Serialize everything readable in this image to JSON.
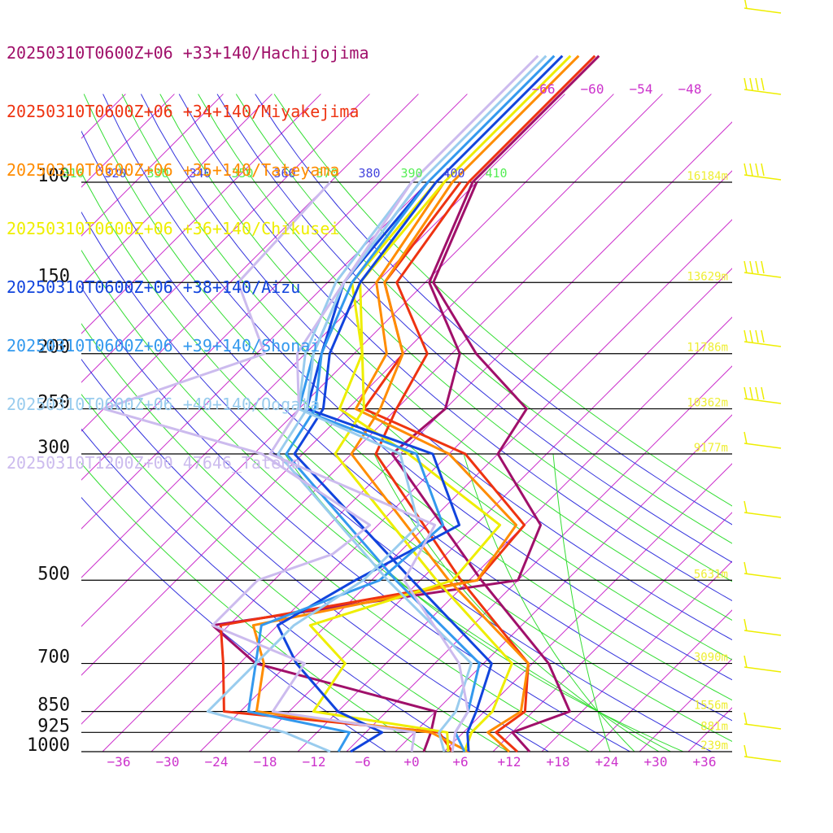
{
  "chart_data": {
    "type": "line",
    "title": "",
    "xlabel": "",
    "ylabel": "",
    "legend_position": "top-left",
    "grid": true,
    "pressure_ticks": [
      100,
      150,
      200,
      250,
      300,
      500,
      700,
      850,
      925,
      1000
    ],
    "pressure_labels": [
      "100",
      "150",
      "200",
      "250",
      "300",
      "500",
      "700",
      "850",
      "925",
      "1000"
    ],
    "temperature_ticks": [
      -36,
      -30,
      -24,
      -18,
      -12,
      -6,
      0,
      6,
      12,
      18,
      24,
      30,
      36
    ],
    "temperature_labels": [
      "−36",
      "−30",
      "−24",
      "−18",
      "−12",
      "−6",
      "+0",
      "+6",
      "+12",
      "+18",
      "+24",
      "+30",
      "+36"
    ],
    "upper_temperature_labels": [
      "−66",
      "−60",
      "−54",
      "−48"
    ],
    "theta_labels": [
      "310",
      "320",
      "330",
      "340",
      "350",
      "360",
      "370",
      "380",
      "390",
      "400",
      "410"
    ],
    "height_labels": [
      "16184m",
      "13629m",
      "11786m",
      "10362m",
      "9177m",
      "5631m",
      "3090m",
      "1556m",
      "881m",
      "239m"
    ],
    "series": [
      {
        "name": "20250310T0600Z+06 +33+140/Hachijojima",
        "color": "#a0106a",
        "temperature": [
          [
            1000,
            14.5
          ],
          [
            925,
            10
          ],
          [
            850,
            14.5
          ],
          [
            700,
            6
          ],
          [
            500,
            -12.5
          ],
          [
            300,
            -39
          ],
          [
            250,
            -38
          ],
          [
            200,
            -43
          ],
          [
            150,
            -55.5
          ],
          [
            100,
            -62.5
          ]
        ],
        "dewpoint": [
          [
            1000,
            1.5
          ],
          [
            925,
            0
          ],
          [
            850,
            -2
          ],
          [
            700,
            -30
          ],
          [
            600,
            -40
          ],
          [
            500,
            -8
          ],
          [
            400,
            -12
          ],
          [
            300,
            -26
          ],
          [
            250,
            -28
          ],
          [
            200,
            -41
          ],
          [
            150,
            -55
          ],
          [
            100,
            -62
          ]
        ]
      },
      {
        "name": "20250310T0600Z+06 +34+140/Miyakejima",
        "color": "#ee3311",
        "temperature": [
          [
            1000,
            13
          ],
          [
            925,
            8
          ],
          [
            850,
            9
          ],
          [
            700,
            3.5
          ],
          [
            500,
            -15
          ],
          [
            300,
            -41
          ],
          [
            250,
            -44
          ],
          [
            200,
            -47
          ],
          [
            150,
            -59.5
          ],
          [
            100,
            -63
          ]
        ],
        "dewpoint": [
          [
            1000,
            5
          ],
          [
            925,
            1
          ],
          [
            850,
            -28
          ],
          [
            700,
            -34
          ],
          [
            600,
            -39
          ],
          [
            500,
            -13
          ],
          [
            400,
            -14
          ],
          [
            300,
            -30
          ],
          [
            250,
            -48
          ],
          [
            200,
            -50
          ],
          [
            150,
            -61
          ],
          [
            100,
            -64
          ]
        ]
      },
      {
        "name": "20250310T0600Z+06 +35+140/Tateyama",
        "color": "#ff8c00",
        "temperature": [
          [
            1000,
            12
          ],
          [
            925,
            7
          ],
          [
            850,
            8.5
          ],
          [
            700,
            3.5
          ],
          [
            500,
            -16.5
          ],
          [
            300,
            -44
          ],
          [
            250,
            -46
          ],
          [
            200,
            -50
          ],
          [
            150,
            -61
          ],
          [
            100,
            -65
          ]
        ],
        "dewpoint": [
          [
            1000,
            7
          ],
          [
            925,
            0
          ],
          [
            850,
            -24
          ],
          [
            700,
            -29
          ],
          [
            600,
            -35
          ],
          [
            500,
            -13
          ],
          [
            400,
            -15
          ],
          [
            300,
            -32
          ],
          [
            250,
            -49
          ],
          [
            200,
            -52
          ],
          [
            150,
            -62
          ],
          [
            100,
            -66
          ]
        ]
      },
      {
        "name": "20250310T0600Z+06 +36+140/Chikusei",
        "color": "#eeee00",
        "temperature": [
          [
            1000,
            6.5
          ],
          [
            925,
            5
          ],
          [
            850,
            5
          ],
          [
            700,
            1.5
          ],
          [
            500,
            -18
          ],
          [
            300,
            -46
          ],
          [
            250,
            -48
          ],
          [
            200,
            -55
          ],
          [
            150,
            -64
          ],
          [
            100,
            -66
          ]
        ],
        "dewpoint": [
          [
            1000,
            4.5
          ],
          [
            925,
            2
          ],
          [
            850,
            -17
          ],
          [
            700,
            -19
          ],
          [
            600,
            -28
          ],
          [
            500,
            -16
          ],
          [
            400,
            -17
          ],
          [
            300,
            -37
          ],
          [
            250,
            -51
          ],
          [
            200,
            -55
          ],
          [
            150,
            -65
          ],
          [
            100,
            -67
          ]
        ]
      },
      {
        "name": "20250310T0600Z+06 +38+140/Aizu",
        "color": "#1144dd",
        "temperature": [
          [
            1000,
            7
          ],
          [
            925,
            4.5
          ],
          [
            850,
            3
          ],
          [
            700,
            -1
          ],
          [
            500,
            -21
          ],
          [
            300,
            -51
          ],
          [
            250,
            -53
          ],
          [
            200,
            -59
          ],
          [
            150,
            -64
          ],
          [
            100,
            -67
          ]
        ],
        "dewpoint": [
          [
            1000,
            -7.5
          ],
          [
            925,
            -6
          ],
          [
            850,
            -14
          ],
          [
            700,
            -25
          ],
          [
            600,
            -32
          ],
          [
            500,
            -28
          ],
          [
            400,
            -22
          ],
          [
            300,
            -34
          ],
          [
            250,
            -55
          ],
          [
            200,
            -60
          ],
          [
            150,
            -66
          ],
          [
            100,
            -68
          ]
        ]
      },
      {
        "name": "20250310T0600Z+06 +39+140/Shonai",
        "color": "#3399ee",
        "temperature": [
          [
            1000,
            6.5
          ],
          [
            925,
            3
          ],
          [
            850,
            2
          ],
          [
            700,
            -2.5
          ],
          [
            500,
            -23
          ],
          [
            300,
            -52
          ],
          [
            250,
            -54
          ],
          [
            200,
            -60
          ],
          [
            150,
            -65
          ],
          [
            100,
            -68
          ]
        ],
        "dewpoint": [
          [
            1000,
            -9
          ],
          [
            925,
            -10
          ],
          [
            850,
            -25
          ],
          [
            700,
            -30
          ],
          [
            600,
            -34
          ],
          [
            500,
            -25
          ],
          [
            400,
            -24
          ],
          [
            300,
            -36
          ],
          [
            250,
            -56
          ],
          [
            200,
            -61
          ],
          [
            150,
            -66
          ],
          [
            100,
            -69
          ]
        ]
      },
      {
        "name": "20250310T0600Z+06 +40+140/Oogata",
        "color": "#99ccee",
        "temperature": [
          [
            1000,
            4
          ],
          [
            925,
            1
          ],
          [
            850,
            0.5
          ],
          [
            700,
            -3.5
          ],
          [
            500,
            -24
          ],
          [
            300,
            -53
          ],
          [
            250,
            -55
          ],
          [
            200,
            -61
          ],
          [
            150,
            -66
          ],
          [
            100,
            -69
          ]
        ],
        "dewpoint": [
          [
            1000,
            -10
          ],
          [
            925,
            -18
          ],
          [
            850,
            -30
          ],
          [
            700,
            -30
          ],
          [
            600,
            -30
          ],
          [
            500,
            -27
          ],
          [
            400,
            -27
          ],
          [
            300,
            -38
          ],
          [
            250,
            -56
          ],
          [
            200,
            -62
          ],
          [
            150,
            -67
          ],
          [
            100,
            -70
          ]
        ]
      },
      {
        "name": "20250310T1200Z+00 47646_Tateno",
        "color": "#ccbbee",
        "temperature": [
          [
            1000,
            5
          ],
          [
            925,
            3
          ],
          [
            850,
            2
          ],
          [
            700,
            -5
          ],
          [
            500,
            -22
          ],
          [
            400,
            -25
          ],
          [
            300,
            -54
          ],
          [
            250,
            -56
          ],
          [
            200,
            -63
          ],
          [
            150,
            -66
          ],
          [
            100,
            -70
          ]
        ],
        "dewpoint": [
          [
            1000,
            0
          ],
          [
            925,
            -2
          ],
          [
            850,
            -22
          ],
          [
            700,
            -24
          ],
          [
            600,
            -40
          ],
          [
            500,
            -40
          ],
          [
            450,
            -34
          ],
          [
            400,
            -33
          ],
          [
            300,
            -55
          ],
          [
            250,
            -80
          ],
          [
            200,
            -67
          ],
          [
            150,
            -79
          ],
          [
            100,
            -80
          ]
        ]
      }
    ]
  }
}
